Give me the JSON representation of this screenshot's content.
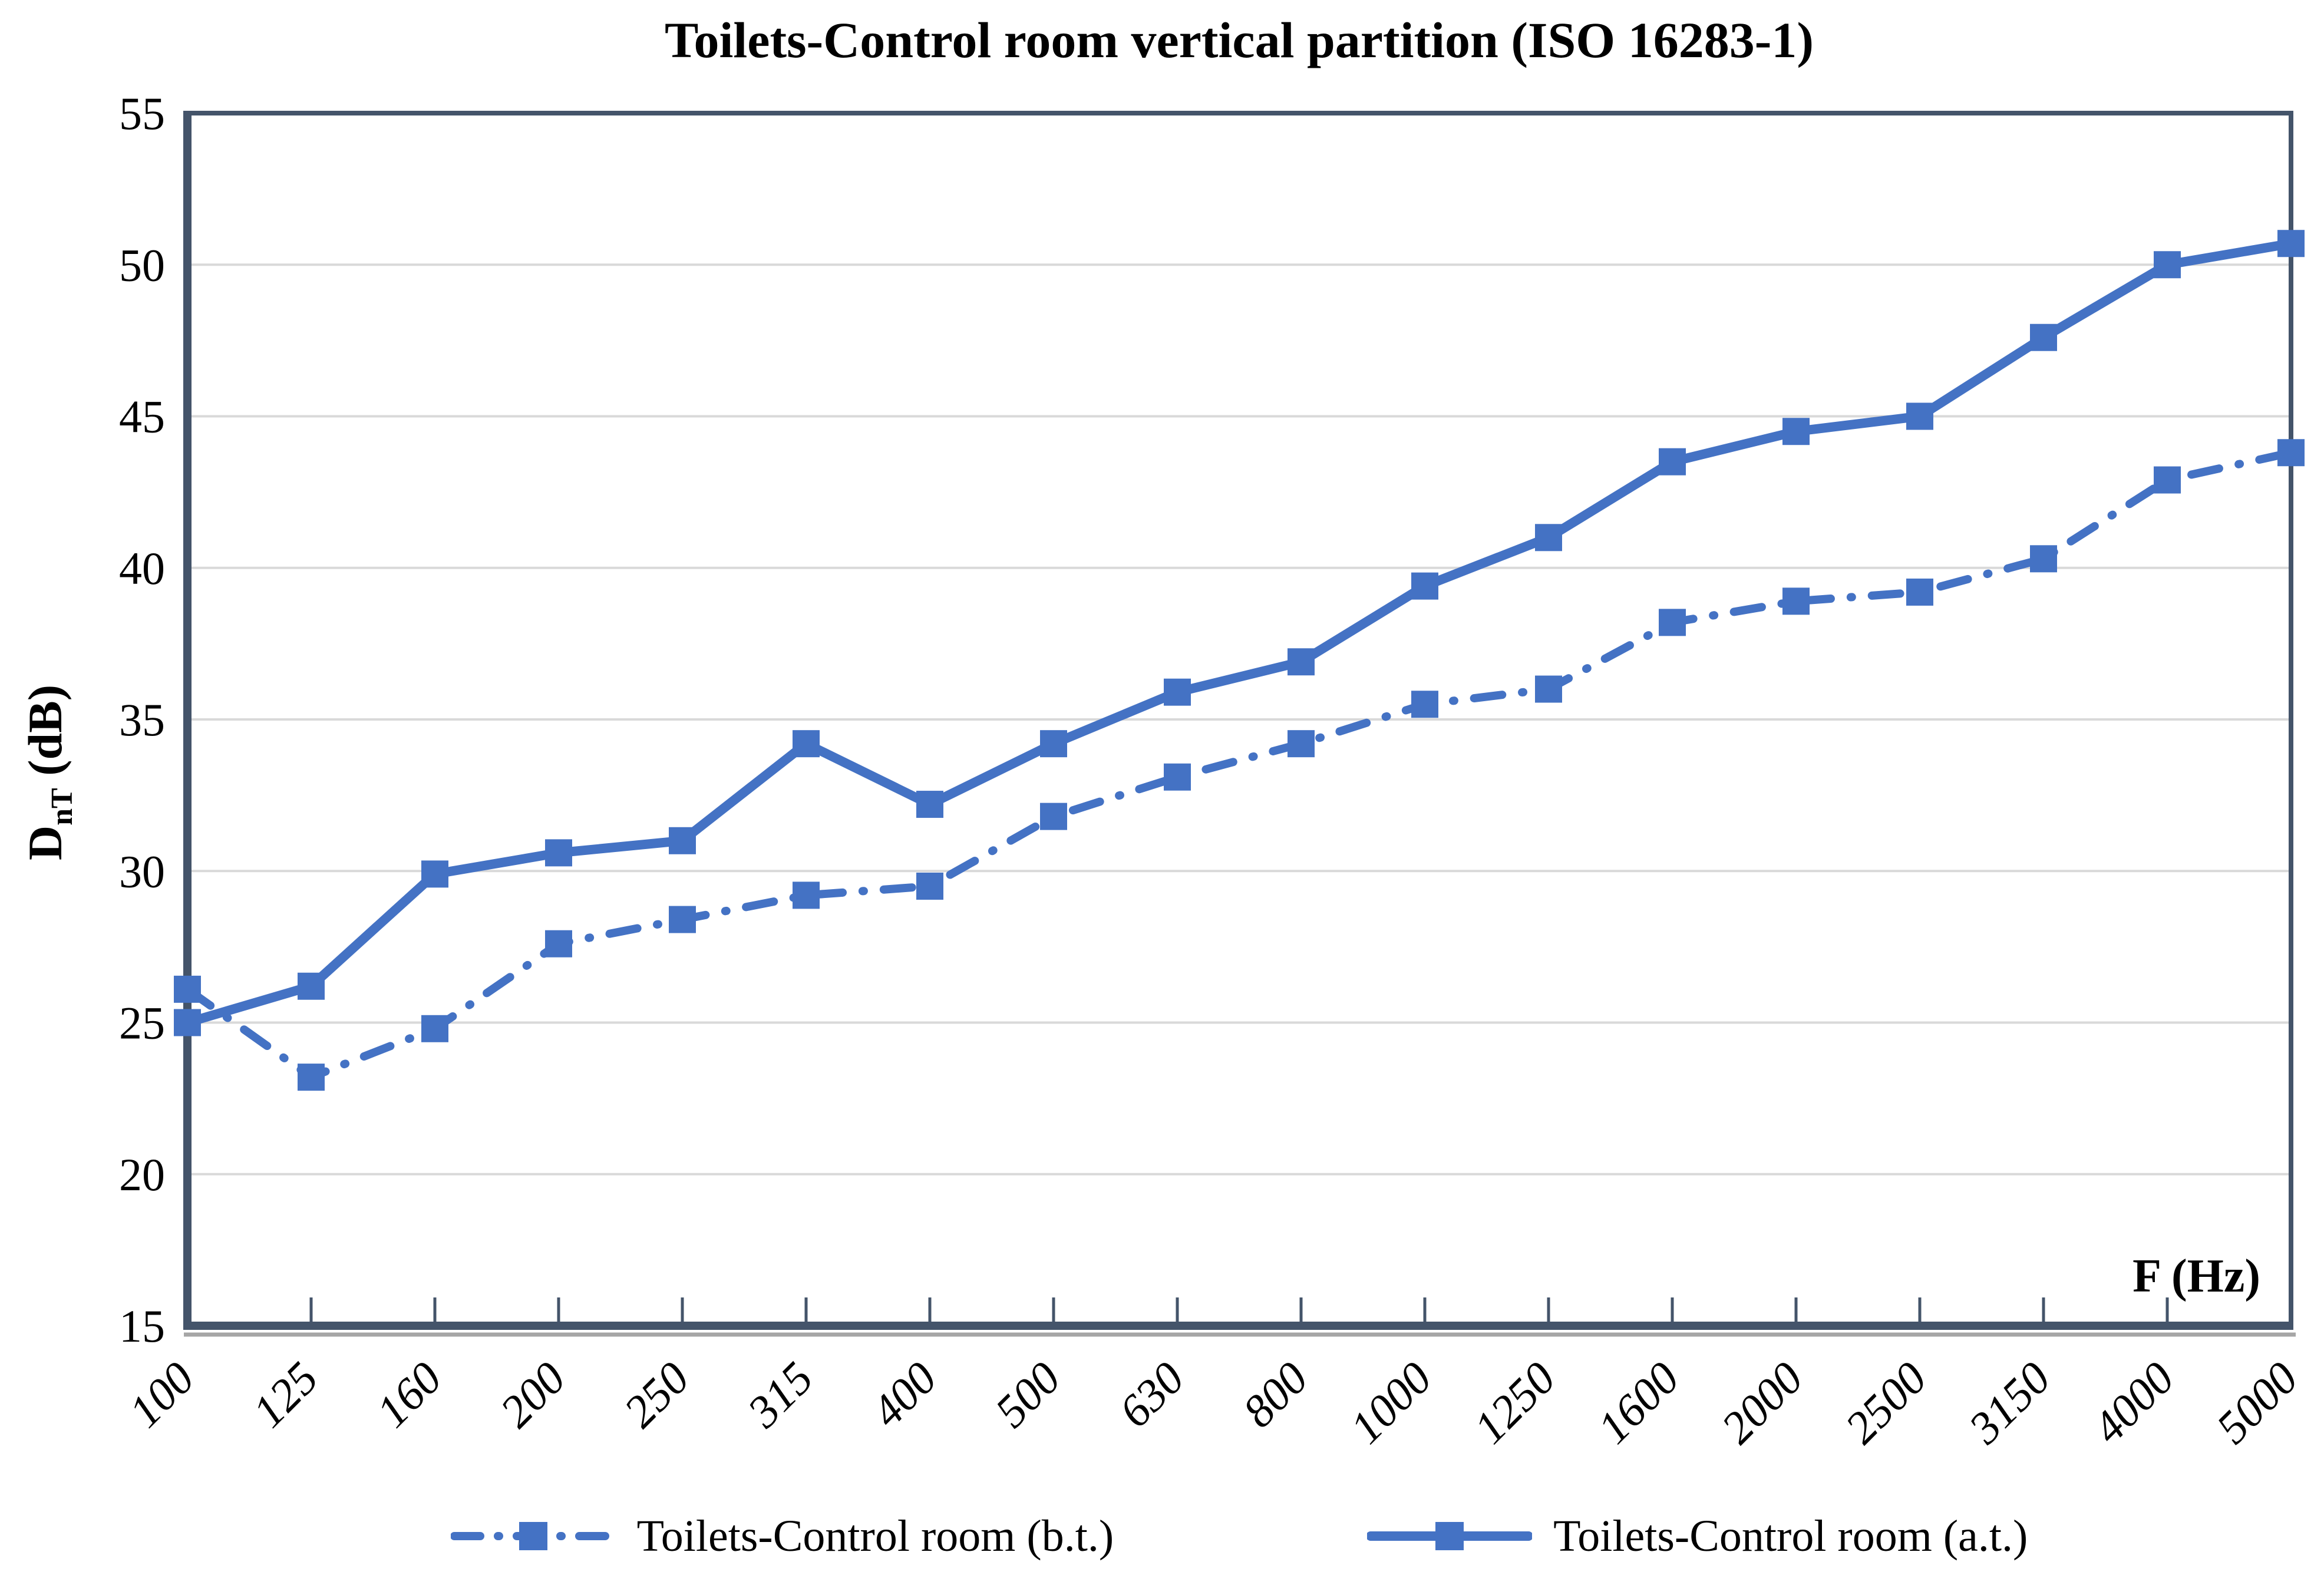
{
  "chart_data": {
    "type": "line",
    "title": "Toilets-Control room vertical partition (ISO 16283-1)",
    "xlabel": "F (Hz)",
    "ylabel": "DnT (dB)",
    "ylabel_parts": {
      "main": "D",
      "sub": "nT",
      "unit": " (dB)"
    },
    "ylim": [
      15,
      55
    ],
    "yticks": [
      15,
      20,
      25,
      30,
      35,
      40,
      45,
      50,
      55
    ],
    "grid": "horizontal-major",
    "legend_position": "bottom-center",
    "categories": [
      "100",
      "125",
      "160",
      "200",
      "250",
      "315",
      "400",
      "500",
      "630",
      "800",
      "1000",
      "1250",
      "1600",
      "2000",
      "2500",
      "3150",
      "4000",
      "5000"
    ],
    "series": [
      {
        "name": "Toilets-Control room (b.t.)",
        "line_style": "dash-dot",
        "marker": "square",
        "color": "#4472C4",
        "values": [
          26.1,
          23.2,
          24.8,
          27.6,
          28.4,
          29.2,
          29.5,
          31.8,
          33.1,
          34.2,
          35.5,
          36.0,
          38.2,
          38.9,
          39.2,
          40.3,
          42.9,
          43.8
        ]
      },
      {
        "name": "Toilets-Control room (a.t.)",
        "line_style": "solid",
        "marker": "square",
        "color": "#4472C4",
        "values": [
          25.0,
          26.2,
          29.9,
          30.6,
          31.0,
          34.2,
          32.2,
          34.2,
          35.9,
          36.9,
          39.4,
          41.0,
          43.5,
          44.5,
          45.0,
          47.6,
          50.0,
          50.7
        ]
      }
    ],
    "colors": {
      "series": "#4472C4",
      "frame": "#44546A",
      "axis_shadow": "#A6A6A6",
      "gridline": "#D9D9D9",
      "text": "#000000",
      "background": "#FFFFFF"
    }
  }
}
